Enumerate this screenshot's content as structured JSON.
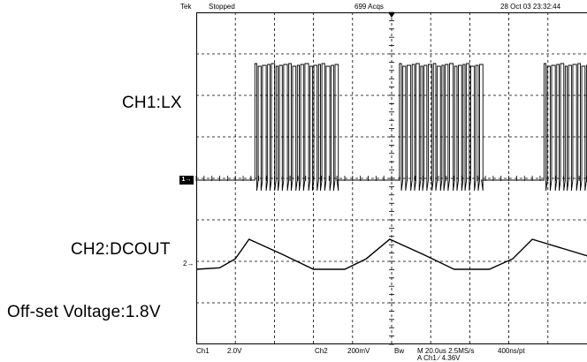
{
  "header": {
    "brand": "Tek",
    "run_state": "Stopped",
    "acquisitions": "699 Acqs",
    "datetime": "28 Oct 03 23:32:44"
  },
  "labels": {
    "ch1": "CH1:LX",
    "ch2": "CH2:DCOUT",
    "offset": "Off-set Voltage:1.8V"
  },
  "markers": {
    "ch1": "1",
    "ch2": "2"
  },
  "footer": {
    "ch1_name": "Ch1",
    "ch1_scale": "2.0V",
    "ch2_name": "Ch2",
    "ch2_scale": "200mV",
    "bw": "Bw",
    "timebase": "M 20.0us 2.5MS/s",
    "record": "400ns/pt",
    "trigger": "A  Ch1  ∕  4.36V"
  },
  "chart_data": {
    "type": "line",
    "title": "",
    "xlabel": "",
    "ylabel": "",
    "grid": true,
    "x_divisions": 10,
    "y_divisions": 8,
    "time_per_div_us": 20,
    "series": [
      {
        "name": "CH1:LX",
        "volts_per_div": 2.0,
        "description_points_div": [
          [
            0,
            0
          ],
          [
            1.5,
            0
          ],
          [
            1.5,
            1
          ],
          [
            3.6,
            1
          ],
          [
            3.6,
            0
          ],
          [
            5.2,
            0
          ],
          [
            5.2,
            1
          ],
          [
            7.3,
            1
          ],
          [
            7.3,
            0
          ],
          [
            8.9,
            0
          ],
          [
            8.9,
            1
          ],
          [
            10,
            1
          ]
        ],
        "burst_low_div": 0,
        "burst_high_div": 3.5
      },
      {
        "name": "CH2:DCOUT",
        "volts_per_div": 0.2,
        "points_div": [
          [
            0,
            0
          ],
          [
            0.6,
            0.05
          ],
          [
            1.0,
            0.35
          ],
          [
            1.35,
            1.0
          ],
          [
            2.2,
            0.5
          ],
          [
            3.0,
            0.0
          ],
          [
            3.8,
            0.0
          ],
          [
            4.35,
            0.35
          ],
          [
            4.95,
            1.0
          ],
          [
            5.8,
            0.5
          ],
          [
            6.6,
            0.0
          ],
          [
            7.5,
            0.0
          ],
          [
            8.1,
            0.35
          ],
          [
            8.6,
            1.0
          ],
          [
            10,
            0.45
          ]
        ]
      }
    ]
  }
}
